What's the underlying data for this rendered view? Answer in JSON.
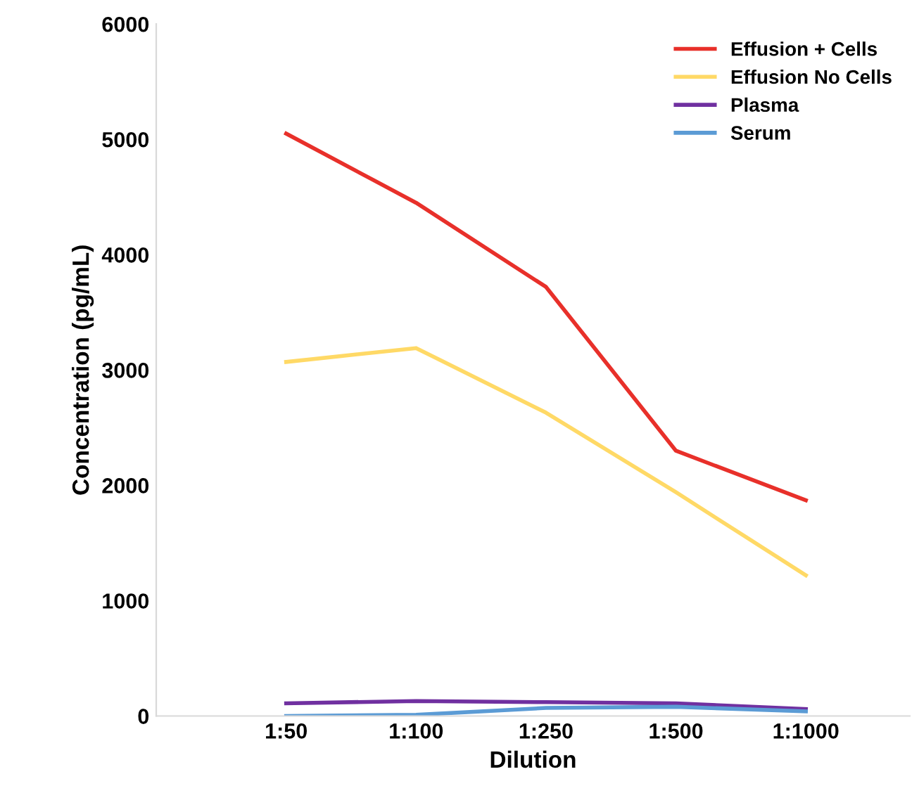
{
  "chart_data": {
    "type": "line",
    "xlabel": "Dilution",
    "ylabel": "Concentration (pg/mL)",
    "categories": [
      "1:50",
      "1:100",
      "1:250",
      "1:500",
      "1:1000"
    ],
    "series": [
      {
        "name": "Effusion + Cells",
        "color": "#e8302a",
        "values": [
          5050,
          4450,
          3720,
          2300,
          1870
        ]
      },
      {
        "name": "Effusion No Cells",
        "color": "#ffd966",
        "values": [
          3070,
          3190,
          2630,
          1940,
          1220
        ]
      },
      {
        "name": "Plasma",
        "color": "#7030a0",
        "values": [
          110,
          130,
          120,
          110,
          60
        ]
      },
      {
        "name": "Serum",
        "color": "#5b9bd5",
        "values": [
          0,
          10,
          70,
          80,
          40
        ]
      }
    ],
    "ylim": [
      0,
      6000
    ],
    "yticks": [
      0,
      1000,
      2000,
      3000,
      4000,
      5000,
      6000
    ],
    "grid": false,
    "legend": "top right",
    "marker": "none",
    "line_style": "solid"
  }
}
